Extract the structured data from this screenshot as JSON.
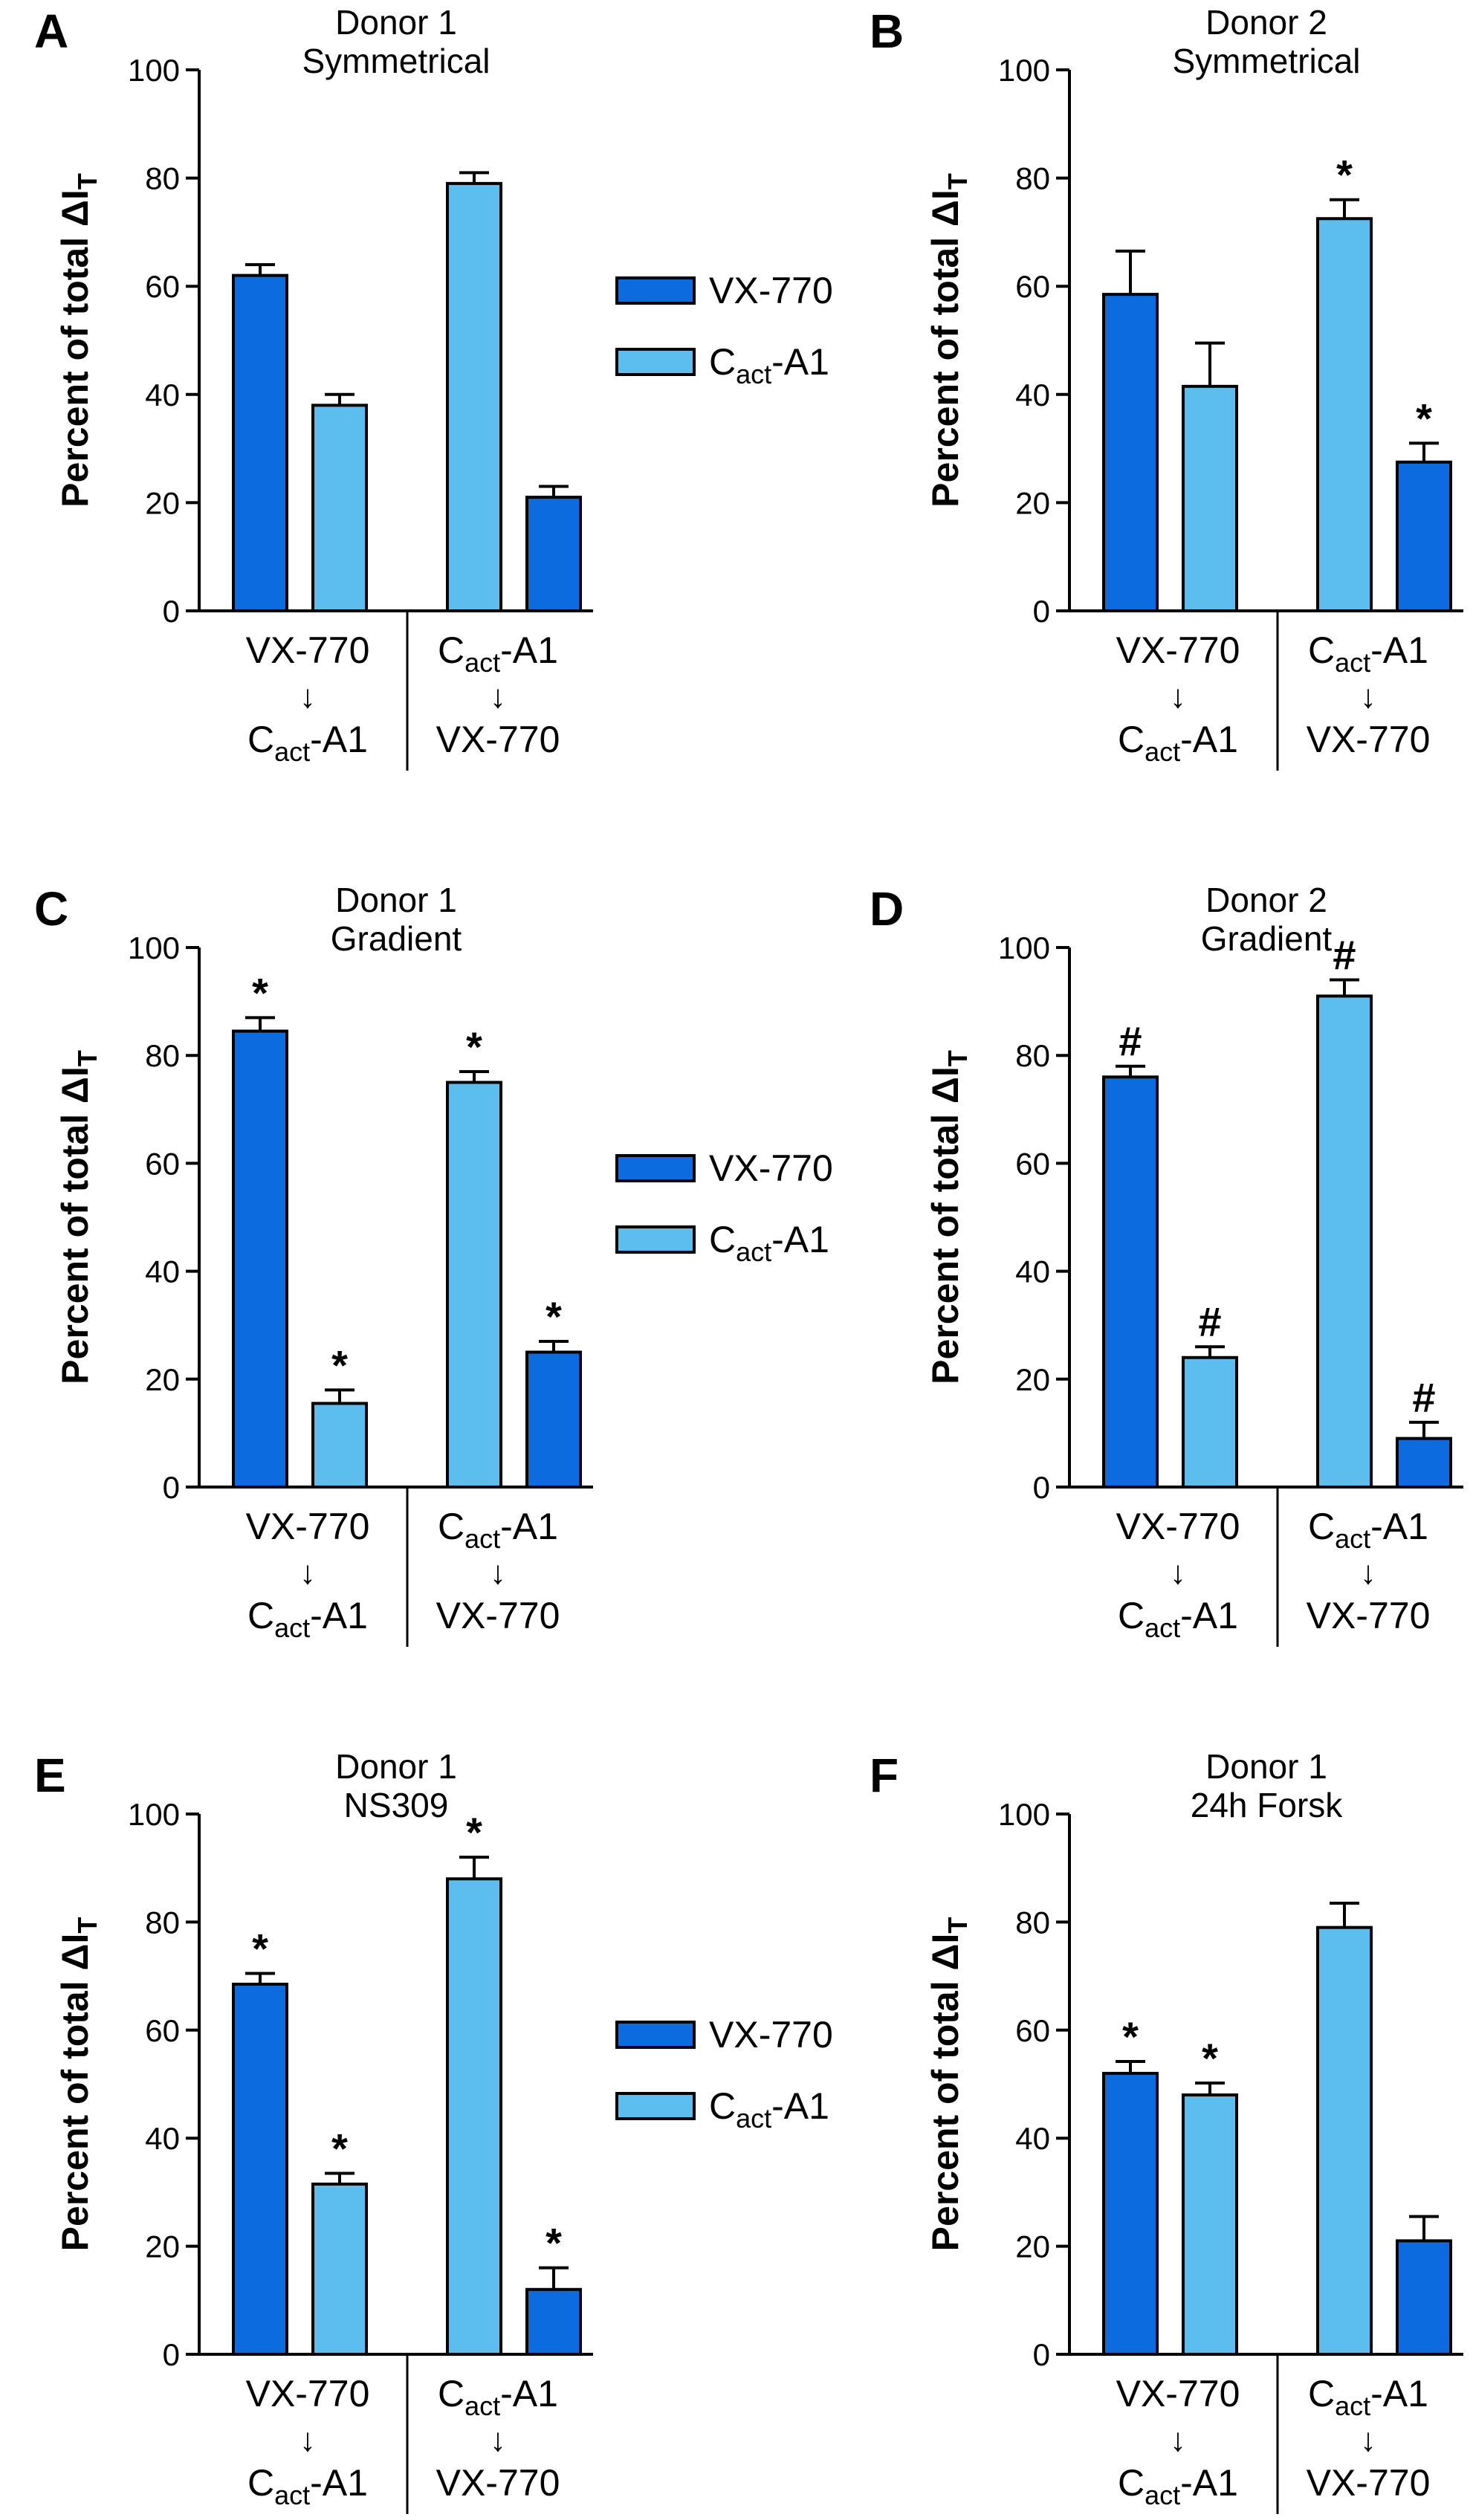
{
  "colors": {
    "vx770": "#0D6BE0",
    "cact": "#5CBDEF",
    "axis": "#000000"
  },
  "legend": [
    {
      "key": "vx770",
      "label": "VX-770",
      "color": "#0D6BE0"
    },
    {
      "key": "cact",
      "label": "C",
      "sub": "act",
      "suffix": "-A1",
      "color": "#5CBDEF"
    }
  ],
  "groups": [
    {
      "line1": "VX-770",
      "arrow": "↓",
      "line2": "C",
      "line2_sub": "act",
      "line2_suffix": "-A1"
    },
    {
      "line1": "C",
      "line1_sub": "act",
      "line1_suffix": "-A1",
      "arrow": "↓",
      "line2": "VX-770"
    }
  ],
  "y_axis": {
    "label_prefix": "Percent of total ΔI",
    "label_sub": "T",
    "ticks": [
      "0",
      "20",
      "40",
      "60",
      "80",
      "100"
    ]
  },
  "chart_data": [
    {
      "type": "bar",
      "panel": "A",
      "title": [
        "Donor 1",
        "Symmetrical"
      ],
      "categories": [
        "VX-770 → Cact-A1",
        "Cact-A1 → VX-770"
      ],
      "ylabel": "Percent of total ΔIT",
      "ylim": [
        0,
        100
      ],
      "bars": [
        {
          "group": 0,
          "drug": "vx770",
          "value": 62,
          "err": 2
        },
        {
          "group": 0,
          "drug": "cact",
          "value": 38,
          "err": 2
        },
        {
          "group": 1,
          "drug": "cact",
          "value": 79,
          "err": 2
        },
        {
          "group": 1,
          "drug": "vx770",
          "value": 21,
          "err": 2
        }
      ]
    },
    {
      "type": "bar",
      "panel": "B",
      "title": [
        "Donor 2",
        "Symmetrical"
      ],
      "categories": [
        "VX-770 → Cact-A1",
        "Cact-A1 → VX-770"
      ],
      "ylabel": "Percent of total ΔIT",
      "ylim": [
        0,
        100
      ],
      "bars": [
        {
          "group": 0,
          "drug": "vx770",
          "value": 58.5,
          "err": 8
        },
        {
          "group": 0,
          "drug": "cact",
          "value": 41.5,
          "err": 8
        },
        {
          "group": 1,
          "drug": "cact",
          "value": 72.5,
          "err": 3.5,
          "mark": "*"
        },
        {
          "group": 1,
          "drug": "vx770",
          "value": 27.5,
          "err": 3.5,
          "mark": "*"
        }
      ]
    },
    {
      "type": "bar",
      "panel": "C",
      "title": [
        "Donor 1",
        "Gradient"
      ],
      "categories": [
        "VX-770 → Cact-A1",
        "Cact-A1 → VX-770"
      ],
      "ylabel": "Percent of total ΔIT",
      "ylim": [
        0,
        100
      ],
      "bars": [
        {
          "group": 0,
          "drug": "vx770",
          "value": 84.5,
          "err": 2.5,
          "mark": "*"
        },
        {
          "group": 0,
          "drug": "cact",
          "value": 15.5,
          "err": 2.5,
          "mark": "*"
        },
        {
          "group": 1,
          "drug": "cact",
          "value": 75,
          "err": 2,
          "mark": "*"
        },
        {
          "group": 1,
          "drug": "vx770",
          "value": 25,
          "err": 2,
          "mark": "*"
        }
      ]
    },
    {
      "type": "bar",
      "panel": "D",
      "title": [
        "Donor 2",
        "Gradient"
      ],
      "categories": [
        "VX-770 → Cact-A1",
        "Cact-A1 → VX-770"
      ],
      "ylabel": "Percent of total ΔIT",
      "ylim": [
        0,
        100
      ],
      "bars": [
        {
          "group": 0,
          "drug": "vx770",
          "value": 76,
          "err": 2,
          "mark": "#"
        },
        {
          "group": 0,
          "drug": "cact",
          "value": 24,
          "err": 2,
          "mark": "#"
        },
        {
          "group": 1,
          "drug": "cact",
          "value": 91,
          "err": 3,
          "mark": "#"
        },
        {
          "group": 1,
          "drug": "vx770",
          "value": 9,
          "err": 3,
          "mark": "#"
        }
      ]
    },
    {
      "type": "bar",
      "panel": "E",
      "title": [
        "Donor 1",
        "NS309"
      ],
      "categories": [
        "VX-770 → Cact-A1",
        "Cact-A1 → VX-770"
      ],
      "ylabel": "Percent of total ΔIT",
      "ylim": [
        0,
        100
      ],
      "bars": [
        {
          "group": 0,
          "drug": "vx770",
          "value": 68.5,
          "err": 2,
          "mark": "*"
        },
        {
          "group": 0,
          "drug": "cact",
          "value": 31.5,
          "err": 2,
          "mark": "*"
        },
        {
          "group": 1,
          "drug": "cact",
          "value": 88,
          "err": 4,
          "mark": "*"
        },
        {
          "group": 1,
          "drug": "vx770",
          "value": 12,
          "err": 4,
          "mark": "*"
        }
      ]
    },
    {
      "type": "bar",
      "panel": "F",
      "title": [
        "Donor 1",
        "24h Forsk"
      ],
      "categories": [
        "VX-770 → Cact-A1",
        "Cact-A1 → VX-770"
      ],
      "ylabel": "Percent of total ΔIT",
      "ylim": [
        0,
        100
      ],
      "bars": [
        {
          "group": 0,
          "drug": "vx770",
          "value": 52,
          "err": 2.2,
          "mark": "*"
        },
        {
          "group": 0,
          "drug": "cact",
          "value": 48,
          "err": 2.2,
          "mark": "*"
        },
        {
          "group": 1,
          "drug": "cact",
          "value": 79,
          "err": 4.5
        },
        {
          "group": 1,
          "drug": "vx770",
          "value": 21,
          "err": 4.5
        }
      ]
    }
  ]
}
